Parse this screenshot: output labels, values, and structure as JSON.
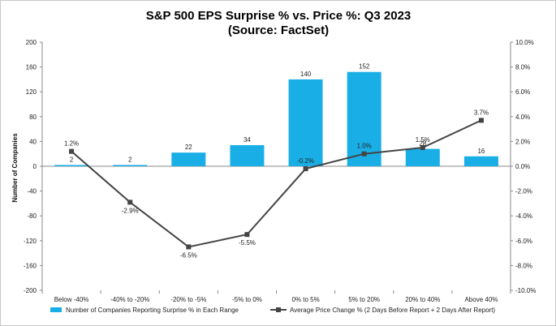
{
  "chart_data": {
    "type": "bar",
    "title": "S&P 500 EPS Surprise % vs. Price %: Q3 2023",
    "subtitle": "(Source: FactSet)",
    "xlabel": "",
    "ylabel": "Number of Companies",
    "ylim": [
      -200,
      200
    ],
    "y_ticks": [
      200,
      160,
      120,
      80,
      40,
      0,
      -40,
      -80,
      -120,
      -160,
      -200
    ],
    "y2lim": [
      -10.0,
      10.0
    ],
    "y2_ticks": [
      "10.0%",
      "8.0%",
      "6.0%",
      "4.0%",
      "2.0%",
      "0.0%",
      "-2.0%",
      "-4.0%",
      "-6.0%",
      "-8.0%",
      "-10.0%"
    ],
    "categories": [
      "Below -40%",
      "-40% to -20%",
      "-20% to -5%",
      "-5% to 0%",
      "0% to 5%",
      "5% to 20%",
      "20% to 40%",
      "Above 40%"
    ],
    "series": [
      {
        "name": "Number of Companies Reporting Surprise % in Each Range",
        "type": "bar",
        "axis": "left",
        "color": "#1aaee6",
        "values": [
          2,
          2,
          22,
          34,
          140,
          152,
          28,
          16
        ],
        "labels": [
          "2",
          "2",
          "22",
          "34",
          "140",
          "152",
          "28",
          "16"
        ]
      },
      {
        "name": "Average Price Change % (2 Days Before Report + 2 Days After Report)",
        "type": "line",
        "axis": "right",
        "color": "#444444",
        "values": [
          1.2,
          -2.9,
          -6.5,
          -5.5,
          -0.2,
          1.0,
          1.5,
          3.7
        ],
        "labels": [
          "1.2%",
          "-2.9%",
          "-6.5%",
          "-5.5%",
          "-0.2%",
          "1.0%",
          "1.5%",
          "3.7%"
        ]
      }
    ],
    "grid": false,
    "legend_position": "bottom"
  }
}
